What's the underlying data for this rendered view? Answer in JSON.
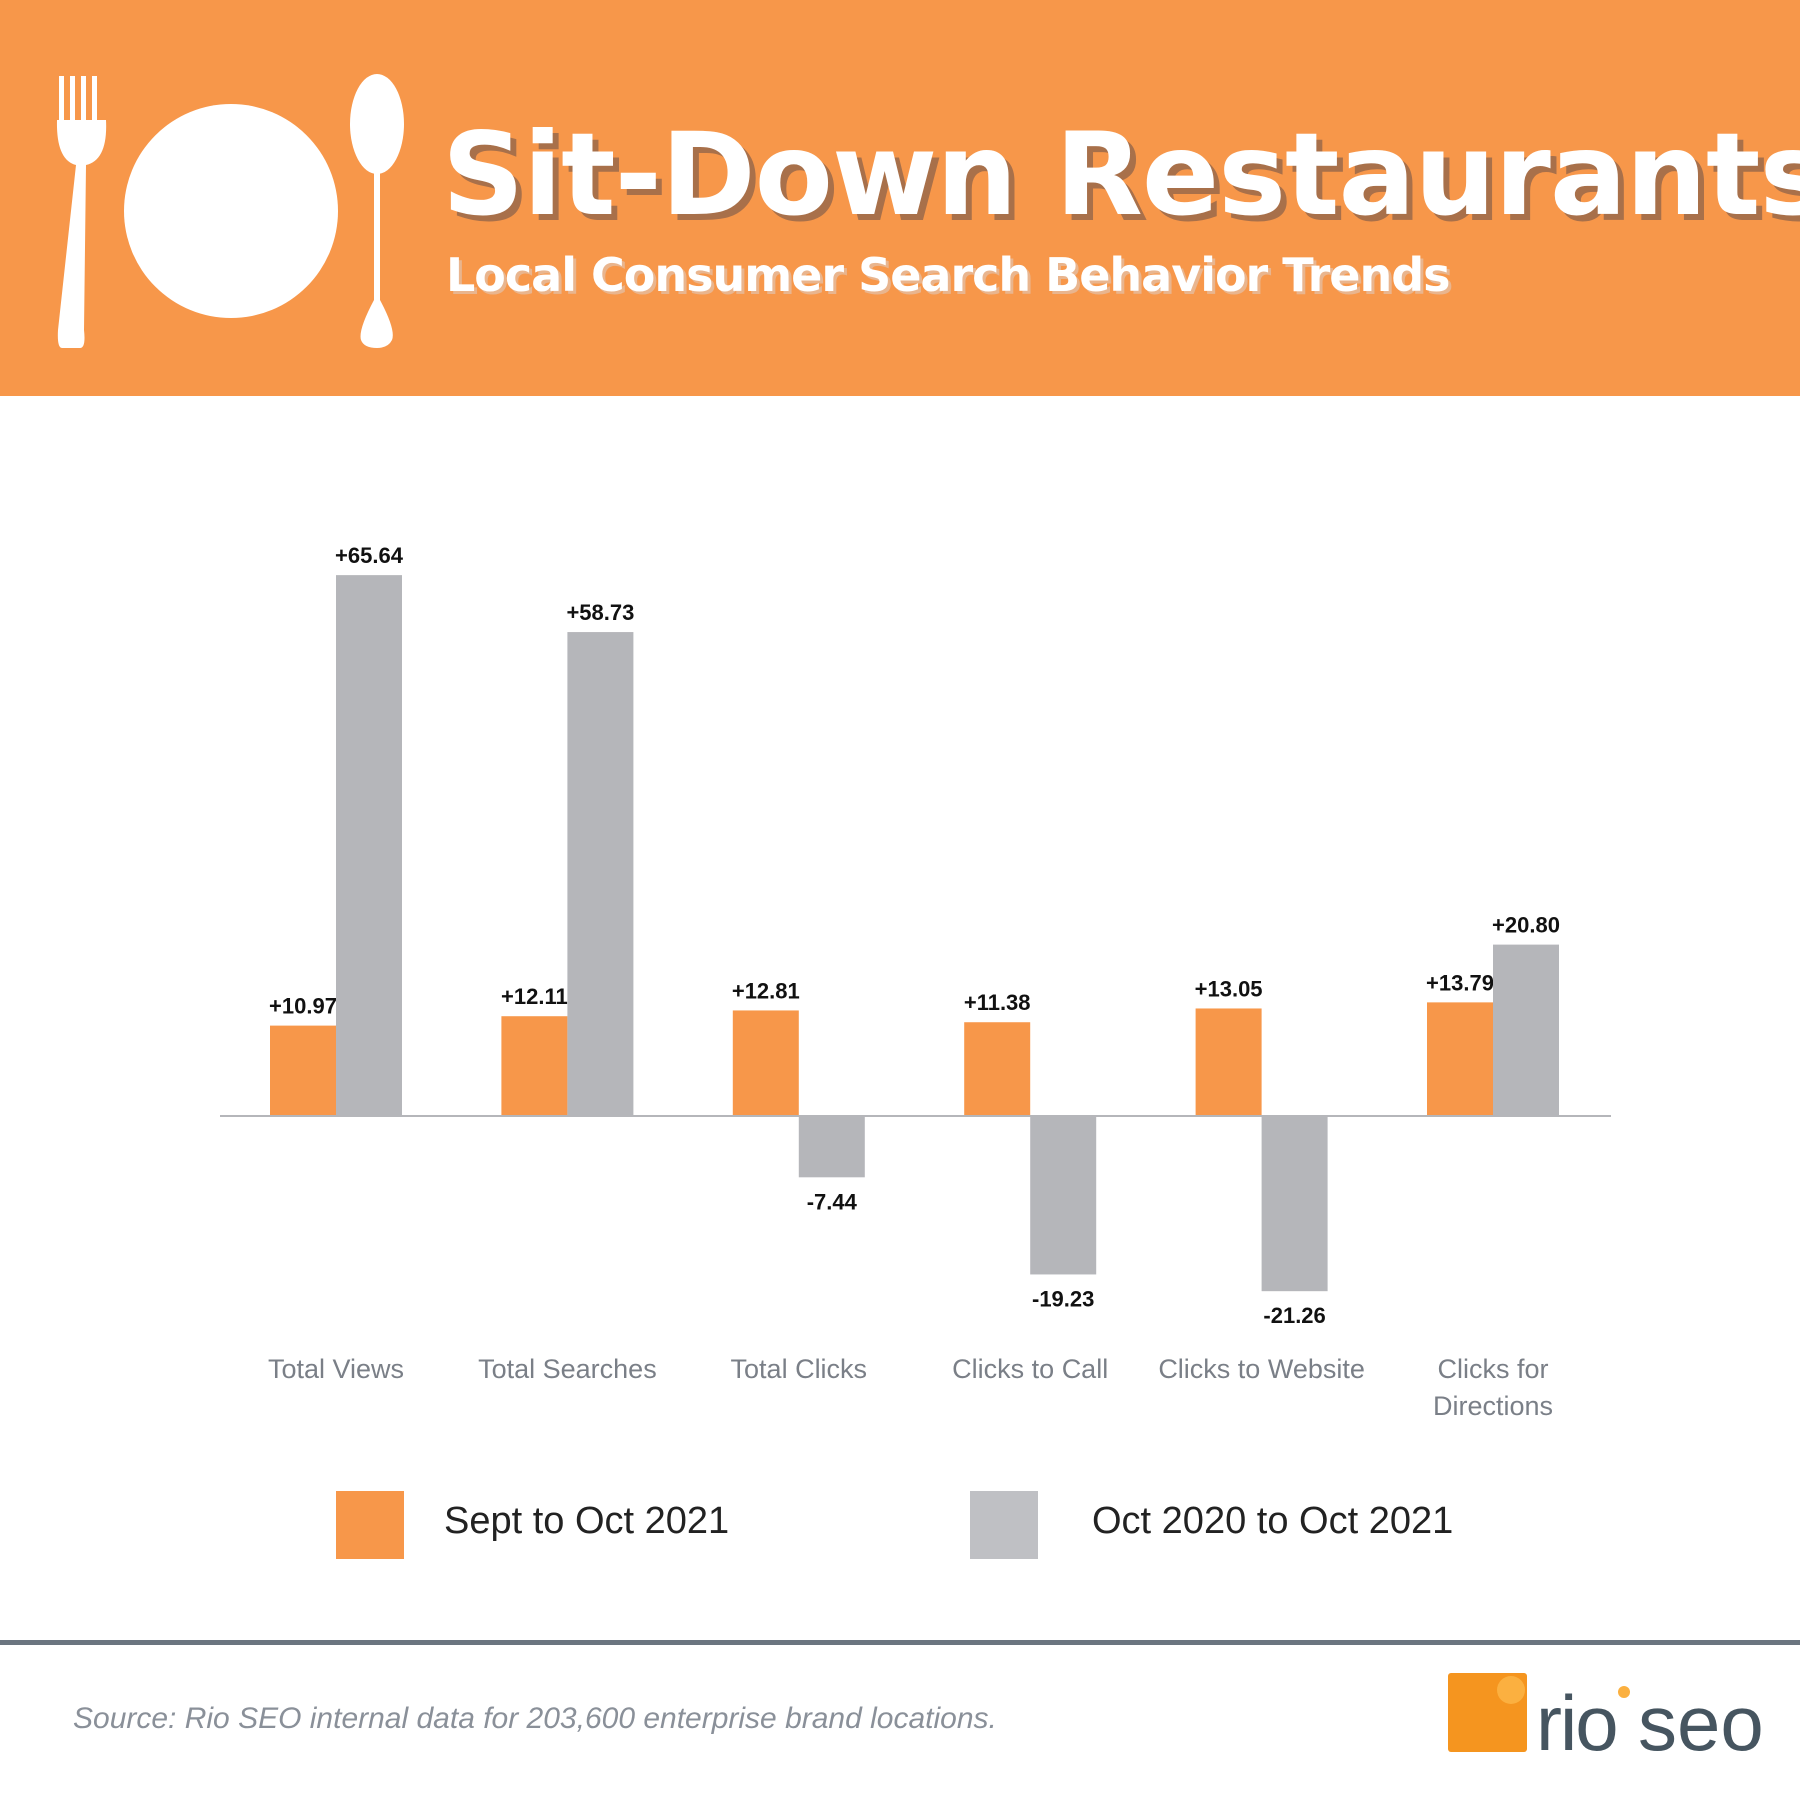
{
  "header": {
    "title": "Sit-Down Restaurants",
    "subtitle": "Local Consumer Search Behavior Trends",
    "icons": [
      "fork-icon",
      "plate-icon",
      "spoon-icon"
    ]
  },
  "colors": {
    "header": "#F7974A",
    "series1": "#F7974A",
    "series2": "#B5B6BA",
    "legend2": "#BFC0C4"
  },
  "chart_data": {
    "type": "bar",
    "title": "",
    "xlabel": "",
    "ylabel": "",
    "categories": [
      "Total Views",
      "Total Searches",
      "Total Clicks",
      "Clicks to Call",
      "Clicks to Website",
      "Clicks for Directions"
    ],
    "series": [
      {
        "name": "Sept to Oct 2021",
        "values": [
          10.97,
          12.11,
          12.81,
          11.38,
          13.05,
          13.79
        ],
        "labels": [
          "+10.97",
          "+12.11",
          "+12.81",
          "+11.38",
          "+13.05",
          "+13.79"
        ]
      },
      {
        "name": "Oct 2020 to Oct 2021",
        "values": [
          65.64,
          58.73,
          -7.44,
          -19.23,
          -21.26,
          20.8
        ],
        "labels": [
          "+65.64",
          "+58.73",
          "-7.44",
          "-19.23",
          "-21.26",
          "+20.80"
        ]
      }
    ],
    "ylim": [
      -25,
      70
    ],
    "grid": false,
    "legend": "bottom"
  },
  "legend": [
    {
      "label": "Sept to Oct 2021"
    },
    {
      "label": "Oct 2020 to Oct 2021"
    }
  ],
  "footer": {
    "source": "Source: Rio SEO internal data for 203,600 enterprise brand locations.",
    "logo_text": "rio seo"
  }
}
